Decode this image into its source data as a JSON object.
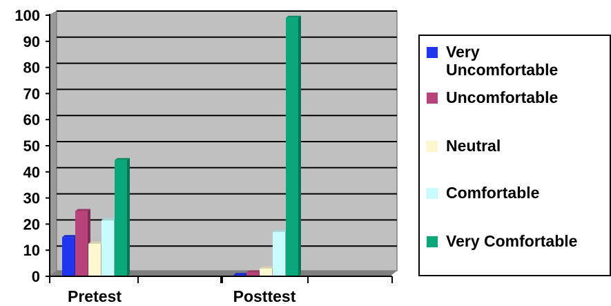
{
  "chart_data": {
    "type": "bar",
    "categories": [
      "Pretest",
      "Posttest"
    ],
    "series": [
      {
        "name": "Very Uncomfortable",
        "values": [
          15,
          0.5
        ],
        "color": "#1f35f0"
      },
      {
        "name": "Uncomfortable",
        "values": [
          25,
          1.5
        ],
        "color": "#b8427a"
      },
      {
        "name": "Neutral",
        "values": [
          12.5,
          3
        ],
        "color": "#fbf7cf"
      },
      {
        "name": "Comfortable",
        "values": [
          21.5,
          17
        ],
        "color": "#c8fbfb"
      },
      {
        "name": "Very Comfortable",
        "values": [
          44.5,
          99
        ],
        "color": "#0aa77a"
      }
    ],
    "ylim": [
      0,
      100
    ],
    "yticks": [
      "0",
      "10",
      "20",
      "30",
      "40",
      "50",
      "60",
      "70",
      "80",
      "90",
      "100"
    ],
    "grid": true,
    "legend_position": "right",
    "plot_background": "#c0c0c0"
  },
  "legend": {
    "items": [
      {
        "line1": "Very",
        "line2": "Uncomfortable"
      },
      {
        "line1": "Uncomfortable",
        "line2": ""
      },
      {
        "line1": "Neutral",
        "line2": ""
      },
      {
        "line1": "Comfortable",
        "line2": ""
      },
      {
        "line1": "Very Comfortable",
        "line2": ""
      }
    ]
  }
}
